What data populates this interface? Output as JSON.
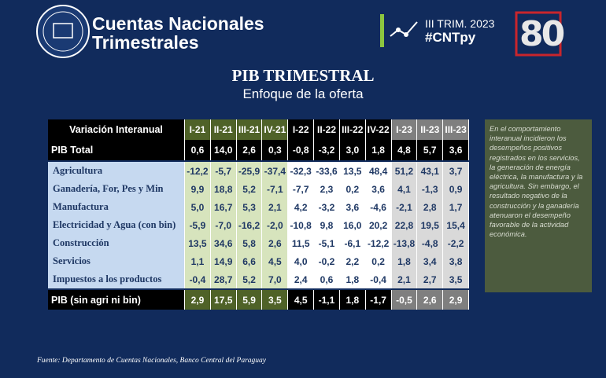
{
  "header": {
    "title_line1": "Cuentas Nacionales",
    "title_line2": "Trimestrales",
    "period": "III TRIM. 2023",
    "hashtag": "#CNTpy",
    "badge": "80"
  },
  "slide": {
    "title": "PIB TRIMESTRAL",
    "subtitle": "Enfoque de la oferta"
  },
  "table": {
    "header": [
      "Variación Interanual",
      "I-21",
      "II-21",
      "III-21",
      "IV-21",
      "I-22",
      "II-22",
      "III-22",
      "IV-22",
      "I-23",
      "II-23",
      "III-23"
    ],
    "rows": [
      [
        "PIB Total",
        "0,6",
        "14,0",
        "2,6",
        "0,3",
        "-0,8",
        "-3,2",
        "3,0",
        "1,8",
        "4,8",
        "5,7",
        "3,6"
      ],
      [
        "Agricultura",
        "-12,2",
        "-5,7",
        "-25,9",
        "-37,4",
        "-32,3",
        "-33,6",
        "13,5",
        "48,4",
        "51,2",
        "43,1",
        "3,7"
      ],
      [
        "Ganadería, For, Pes y Min",
        "9,9",
        "18,8",
        "5,2",
        "-7,1",
        "-7,7",
        "2,3",
        "0,2",
        "3,6",
        "4,1",
        "-1,3",
        "0,9"
      ],
      [
        "Manufactura",
        "5,0",
        "16,7",
        "5,3",
        "2,1",
        "4,2",
        "-3,2",
        "3,6",
        "-4,6",
        "-2,1",
        "2,8",
        "1,7"
      ],
      [
        "Electricidad y Agua (con bin)",
        "-5,9",
        "-7,0",
        "-16,2",
        "-2,0",
        "-10,8",
        "9,8",
        "16,0",
        "20,2",
        "22,8",
        "19,5",
        "15,4"
      ],
      [
        "Construcción",
        "13,5",
        "34,6",
        "5,8",
        "2,6",
        "11,5",
        "-5,1",
        "-6,1",
        "-12,2",
        "-13,8",
        "-4,8",
        "-2,2"
      ],
      [
        "Servicios",
        "1,1",
        "14,9",
        "6,6",
        "4,5",
        "4,0",
        "-0,2",
        "2,2",
        "0,2",
        "1,8",
        "3,4",
        "3,8"
      ],
      [
        "Impuestos a los productos",
        "-0,4",
        "28,7",
        "5,2",
        "7,0",
        "2,4",
        "0,6",
        "1,8",
        "-0,4",
        "2,1",
        "2,7",
        "3,5"
      ],
      [
        "PIB (sin agri ni bin)",
        "2,9",
        "17,5",
        "5,9",
        "3,5",
        "4,5",
        "-1,1",
        "1,8",
        "-1,7",
        "-0,5",
        "2,6",
        "2,9"
      ]
    ]
  },
  "note": "En el comportamiento interanual incidieron los desempeños positivos registrados en los servicios, la generación de energía eléctrica, la manufactura y la agricultura. Sin embargo, el resultado negativo de la construcción y la ganadería atenuaron el desempeño favorable de la actividad económica.",
  "source": "Fuente: Departamento de Cuentas Nacionales, Banco Central del Paraguay"
}
